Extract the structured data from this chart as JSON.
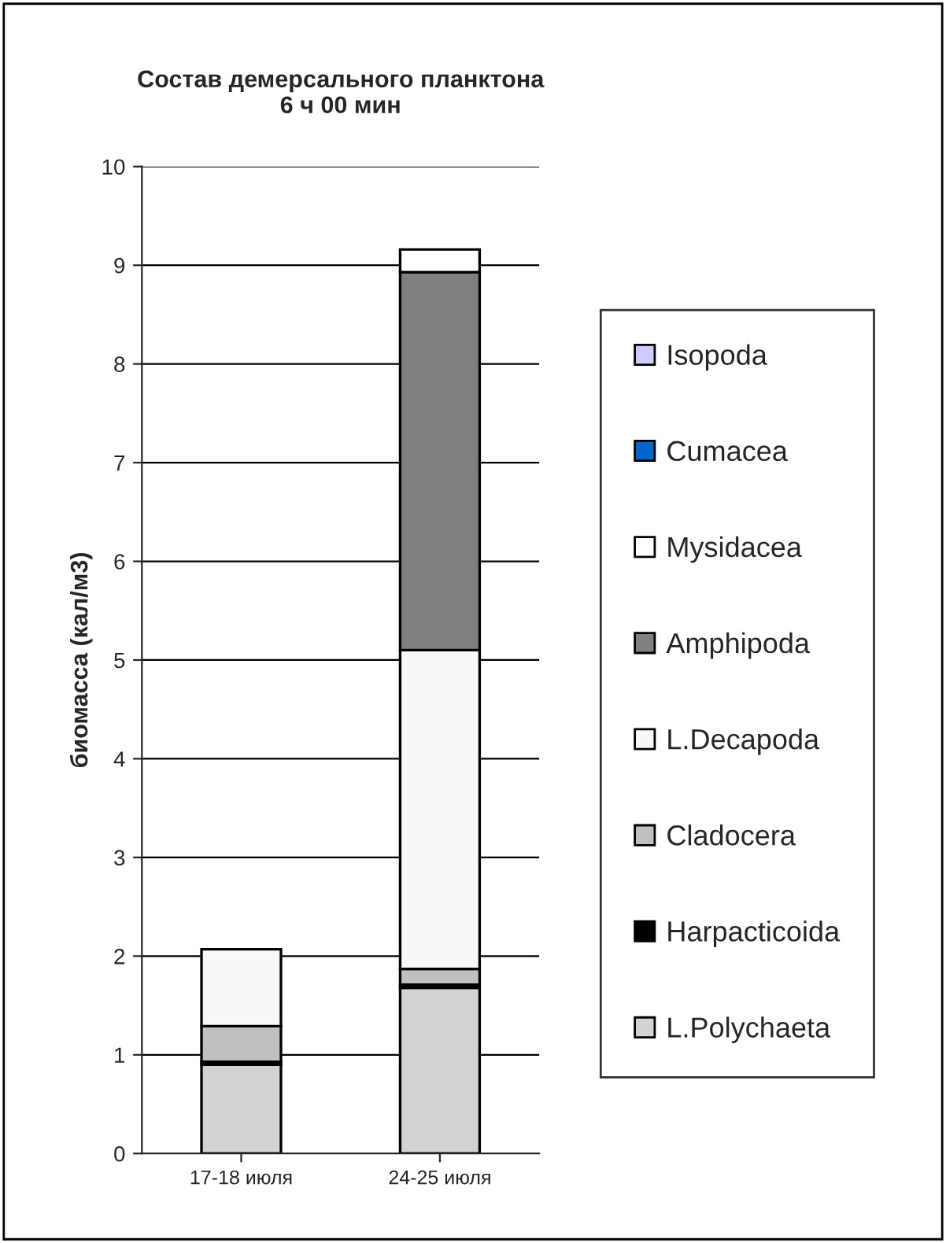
{
  "chart_data": {
    "type": "bar",
    "title": "Состав демерсального планктона\n6 ч 00 мин",
    "ylabel": "биомасса (кал/м3)",
    "categories": [
      "17-18 июля",
      "24-25 июля"
    ],
    "stacked": true,
    "ylim": [
      0,
      10
    ],
    "yticks": [
      0,
      1,
      2,
      3,
      4,
      5,
      6,
      7,
      8,
      9,
      10
    ],
    "grid": "y",
    "legend": "right",
    "series": [
      {
        "name": "L.Polychaeta",
        "color": "#d3d3d3",
        "values": [
          0.9,
          1.68
        ]
      },
      {
        "name": "Harpacticoida",
        "color": "#000000",
        "values": [
          0.03,
          0.03
        ]
      },
      {
        "name": "Cladocera",
        "color": "#c0c0c0",
        "values": [
          0.36,
          0.16
        ]
      },
      {
        "name": "L.Decapoda",
        "color": "#f8f8f8",
        "values": [
          0.78,
          3.23
        ]
      },
      {
        "name": "Amphipoda",
        "color": "#808080",
        "values": [
          0,
          3.83
        ]
      },
      {
        "name": "Mysidacea",
        "color": "#ffffff",
        "values": [
          0,
          0.23
        ]
      },
      {
        "name": "Cumacea",
        "color": "#0066cc",
        "values": [
          0,
          0
        ]
      },
      {
        "name": "Isopoda",
        "color": "#ccccff",
        "values": [
          0,
          0
        ]
      }
    ]
  }
}
